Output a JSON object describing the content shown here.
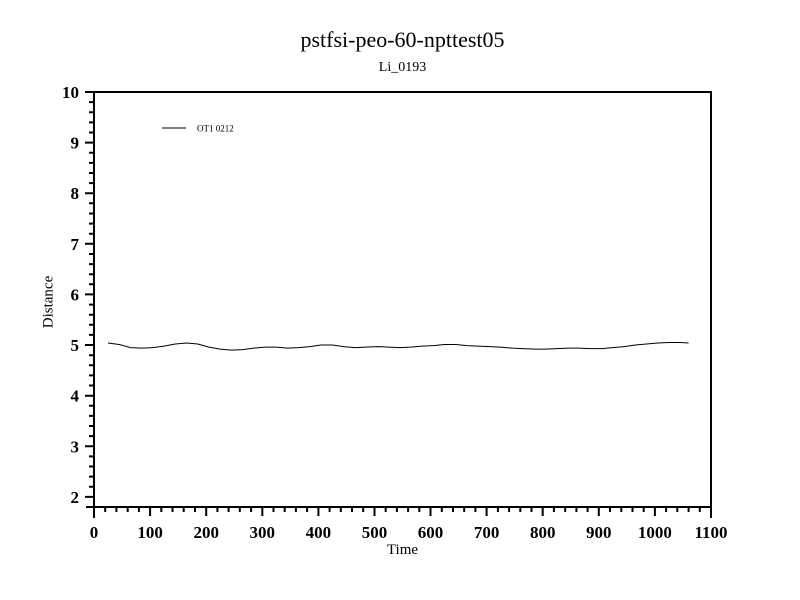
{
  "colors": {
    "foreground": "#000000",
    "background": "#ffffff"
  },
  "chart_data": {
    "type": "line",
    "title": "pstfsi-peo-60-npttest05",
    "subtitle": "Li_0193",
    "xlabel": "Time",
    "ylabel": "Distance",
    "xlim": [
      0,
      1100
    ],
    "ylim": [
      1.8,
      10
    ],
    "grid": false,
    "x_major_ticks": [
      0,
      100,
      200,
      300,
      400,
      500,
      600,
      700,
      800,
      900,
      1000,
      1100
    ],
    "x_minor_step": 20,
    "y_major_ticks": [
      2,
      3,
      4,
      5,
      6,
      7,
      8,
      9,
      10
    ],
    "y_minor_step": 0.2,
    "legend": {
      "position": "upper-left-inside",
      "entries": [
        {
          "label": "OT1 0212",
          "color": "#000000"
        }
      ]
    },
    "series": [
      {
        "name": "OT1 0212",
        "color": "#000000",
        "x": [
          25,
          45,
          65,
          85,
          105,
          125,
          145,
          165,
          185,
          205,
          225,
          245,
          265,
          285,
          305,
          325,
          345,
          365,
          385,
          405,
          425,
          445,
          465,
          485,
          505,
          525,
          545,
          565,
          585,
          605,
          625,
          645,
          665,
          685,
          705,
          725,
          745,
          765,
          785,
          805,
          825,
          845,
          865,
          885,
          905,
          925,
          945,
          965,
          985,
          1005,
          1025,
          1045,
          1060
        ],
        "y": [
          5.04,
          5.01,
          4.95,
          4.94,
          4.95,
          4.98,
          5.02,
          5.04,
          5.02,
          4.96,
          4.92,
          4.9,
          4.91,
          4.94,
          4.96,
          4.96,
          4.94,
          4.95,
          4.97,
          5.0,
          5.0,
          4.97,
          4.95,
          4.96,
          4.97,
          4.96,
          4.95,
          4.96,
          4.98,
          4.99,
          5.01,
          5.01,
          4.99,
          4.98,
          4.97,
          4.96,
          4.94,
          4.93,
          4.92,
          4.92,
          4.93,
          4.94,
          4.94,
          4.93,
          4.93,
          4.95,
          4.97,
          5.0,
          5.02,
          5.04,
          5.05,
          5.05,
          5.04
        ]
      }
    ]
  }
}
